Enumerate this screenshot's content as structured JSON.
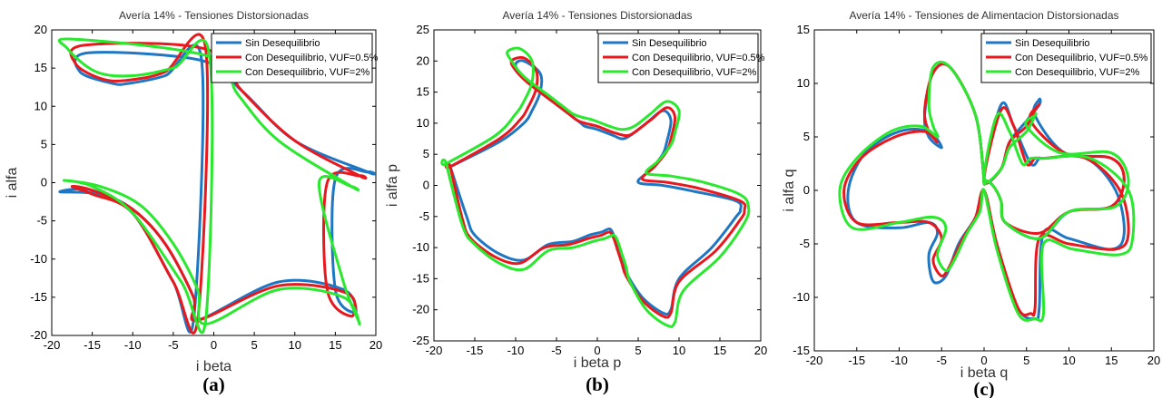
{
  "chart_data": [
    {
      "type": "line",
      "caption": "(a)",
      "title": "Avería 14% - Tensiones Distorsionadas",
      "xlabel": "i beta",
      "ylabel": "i alfa",
      "xlim": [
        -20,
        20
      ],
      "ylim": [
        -20,
        20
      ],
      "xticks": [
        -20,
        -15,
        -10,
        -5,
        0,
        5,
        10,
        15,
        20
      ],
      "yticks": [
        -20,
        -15,
        -10,
        -5,
        0,
        5,
        10,
        15,
        20
      ],
      "grid": false,
      "legend_position": "top-right",
      "series": [
        {
          "name": "Sin Desequilibrio",
          "color": "#1f77c4",
          "x": [
            19.0,
            10.0,
            3.5,
            -1.5,
            -15.5,
            -16.5,
            -12.5,
            -10.5,
            -6.0,
            -1.5,
            -2.5,
            -5.0,
            -10.0,
            -15.0,
            -19.0,
            -14.0,
            -10.0,
            -6.0,
            -2.5,
            -2.0,
            8.0,
            16.0,
            17.5,
            15.0,
            15.0,
            19.0
          ],
          "y": [
            1.4,
            5.5,
            12.0,
            16.0,
            17.0,
            14.5,
            13.0,
            13.0,
            14.0,
            16.0,
            -18.0,
            -13.0,
            -4.0,
            -1.0,
            -1.2,
            -1.5,
            -3.5,
            -8.0,
            -15.0,
            -18.0,
            -13.0,
            -14.0,
            -17.0,
            -14.0,
            0.5,
            1.4
          ]
        },
        {
          "name": "Con Desequilibrio, VUF=0.5%",
          "color": "#e8191e",
          "x": [
            18.0,
            10.0,
            3.5,
            -1.0,
            -16.0,
            -17.0,
            -13.5,
            -10.0,
            -6.0,
            -1.0,
            -2.0,
            -5.0,
            -10.0,
            -15.0,
            -17.5,
            -15.0,
            -10.0,
            -6.0,
            -2.5,
            -2.0,
            8.0,
            16.5,
            17.0,
            14.0,
            14.0,
            18.0
          ],
          "y": [
            0.9,
            5.5,
            12.0,
            17.5,
            18.0,
            15.5,
            13.5,
            13.5,
            14.5,
            17.5,
            -18.0,
            -13.0,
            -4.0,
            -1.5,
            -0.5,
            -1.0,
            -3.5,
            -8.0,
            -15.0,
            -18.0,
            -13.5,
            -14.5,
            -17.5,
            -14.0,
            0.0,
            0.9
          ]
        },
        {
          "name": "Con Desequilibrio, VUF=2%",
          "color": "#29e82d",
          "x": [
            17.0,
            8.0,
            3.0,
            -0.5,
            -17.5,
            -18.0,
            -14.5,
            -10.0,
            -5.0,
            -0.5,
            -1.0,
            -4.0,
            -10.0,
            -15.0,
            -18.5,
            -14.0,
            -9.0,
            -5.0,
            -2.0,
            -1.0,
            8.0,
            16.0,
            18.0,
            16.0,
            13.0,
            17.0
          ],
          "y": [
            -0.5,
            5.5,
            11.5,
            16.5,
            18.8,
            17.5,
            14.5,
            14.0,
            15.0,
            16.5,
            -18.0,
            -13.0,
            -4.0,
            -0.5,
            0.3,
            -0.5,
            -3.0,
            -8.0,
            -14.0,
            -18.5,
            -14.0,
            -15.0,
            -18.5,
            -13.0,
            0.0,
            -0.5
          ]
        }
      ]
    },
    {
      "type": "line",
      "caption": "(b)",
      "title": "Avería 14% - Tensiones Distorsionadas",
      "xlabel": "i beta p",
      "ylabel": "i alfa p",
      "xlim": [
        -20,
        20
      ],
      "ylim": [
        -25,
        25
      ],
      "xticks": [
        -20,
        -15,
        -10,
        -5,
        0,
        5,
        10,
        15,
        20
      ],
      "yticks": [
        -25,
        -20,
        -15,
        -10,
        -5,
        0,
        5,
        10,
        15,
        20,
        25
      ],
      "grid": false,
      "legend_position": "top-right",
      "series": [
        {
          "name": "Sin Desequilibrio",
          "color": "#1f77c4",
          "x": [
            -18.0,
            -12.0,
            -9.0,
            -8.0,
            -7.0,
            -7.0,
            -9.0,
            -10.0,
            -9.5,
            -8.0,
            -5.0,
            -3.0,
            -2.0,
            -1.5,
            0.0,
            2.0,
            3.0,
            4.0,
            6.0,
            8.0,
            9.0,
            8.5,
            8.0,
            6.5,
            5.0,
            8.0,
            12.0,
            17.0,
            17.5,
            17.0,
            14.0,
            10.0,
            9.0,
            8.0,
            5.5,
            3.5,
            3.0,
            2.5,
            2.0,
            1.5,
            0.5,
            -1.0,
            -3.0,
            -6.0,
            -9.0,
            -12.0,
            -15.0,
            -16.0,
            -18.0
          ],
          "y": [
            3.0,
            7.0,
            10.0,
            12.0,
            15.0,
            18.0,
            20.0,
            19.5,
            18.0,
            16.0,
            13.0,
            11.0,
            10.0,
            9.5,
            9.0,
            8.0,
            7.5,
            8.0,
            10.0,
            12.0,
            10.5,
            7.0,
            5.0,
            2.5,
            0.5,
            0.0,
            -1.0,
            -2.5,
            -4.0,
            -5.0,
            -10.0,
            -15.0,
            -20.0,
            -20.5,
            -18.0,
            -14.0,
            -12.0,
            -10.0,
            -8.0,
            -7.0,
            -7.5,
            -8.0,
            -9.0,
            -9.5,
            -12.0,
            -11.0,
            -8.0,
            -5.0,
            3.0
          ]
        },
        {
          "name": "Con Desequilibrio, VUF=0.5%",
          "color": "#e8191e",
          "x": [
            -18.0,
            -12.0,
            -9.5,
            -8.5,
            -7.5,
            -7.5,
            -9.0,
            -10.5,
            -10.0,
            -8.5,
            -5.5,
            -3.5,
            -2.5,
            -1.5,
            0.0,
            2.0,
            3.5,
            4.5,
            6.5,
            8.5,
            9.5,
            9.0,
            8.5,
            7.0,
            5.5,
            8.5,
            12.5,
            17.5,
            18.0,
            17.5,
            14.5,
            10.0,
            9.0,
            8.0,
            5.5,
            3.5,
            3.0,
            2.5,
            2.0,
            1.5,
            0.5,
            -1.0,
            -3.5,
            -6.5,
            -9.5,
            -12.5,
            -15.5,
            -16.5,
            -18.0
          ],
          "y": [
            3.0,
            7.5,
            10.5,
            12.5,
            15.5,
            18.5,
            20.5,
            20.0,
            18.5,
            16.5,
            13.5,
            11.5,
            10.5,
            10.0,
            9.5,
            8.5,
            8.0,
            8.5,
            10.5,
            12.5,
            11.0,
            7.5,
            5.5,
            3.0,
            1.0,
            0.5,
            -0.5,
            -2.5,
            -4.0,
            -5.5,
            -10.5,
            -15.5,
            -20.5,
            -21.0,
            -18.5,
            -14.5,
            -12.5,
            -10.5,
            -8.5,
            -7.5,
            -8.0,
            -8.5,
            -9.5,
            -10.0,
            -12.5,
            -11.5,
            -8.5,
            -5.5,
            3.0
          ]
        },
        {
          "name": "Con Desequilibrio, VUF=2%",
          "color": "#29e82d",
          "x": [
            -18.5,
            -12.5,
            -10.0,
            -9.0,
            -8.0,
            -8.0,
            -9.5,
            -11.0,
            -10.5,
            -9.0,
            -6.0,
            -4.0,
            -3.0,
            -2.0,
            -0.5,
            1.5,
            3.0,
            4.5,
            6.5,
            8.5,
            10.0,
            9.5,
            9.0,
            7.5,
            6.0,
            9.0,
            13.0,
            17.5,
            18.5,
            18.0,
            15.0,
            10.5,
            9.5,
            8.5,
            6.0,
            4.0,
            3.5,
            3.0,
            2.5,
            2.0,
            1.0,
            -0.5,
            -3.0,
            -6.0,
            -9.0,
            -12.0,
            -15.0,
            -16.5,
            -18.5
          ],
          "y": [
            3.5,
            8.0,
            11.5,
            13.5,
            16.5,
            20.0,
            22.0,
            21.5,
            20.0,
            17.5,
            14.5,
            12.5,
            11.5,
            11.0,
            10.5,
            9.5,
            9.0,
            9.5,
            11.5,
            13.5,
            12.0,
            8.5,
            6.5,
            4.0,
            2.0,
            1.5,
            0.5,
            -1.5,
            -3.5,
            -6.0,
            -11.5,
            -17.0,
            -22.0,
            -22.5,
            -20.0,
            -15.5,
            -13.0,
            -11.0,
            -9.0,
            -8.0,
            -8.5,
            -9.0,
            -10.0,
            -10.5,
            -13.5,
            -12.5,
            -9.5,
            -6.5,
            3.5
          ]
        }
      ]
    },
    {
      "type": "line",
      "caption": "(c)",
      "title": "Avería 14% - Tensiones de Alimentacion Distorsionadas",
      "xlabel": "i beta q",
      "ylabel": "i alfa q",
      "xlim": [
        -20,
        20
      ],
      "ylim": [
        -15,
        15
      ],
      "xticks": [
        -20,
        -15,
        -10,
        -5,
        0,
        5,
        10,
        15,
        20
      ],
      "yticks": [
        -15,
        -10,
        -5,
        0,
        5,
        10,
        15
      ],
      "grid": false,
      "legend_position": "top-right",
      "series": [
        {
          "name": "Sin Desequilibrio",
          "color": "#1f77c4",
          "x": [
            0.0,
            -1.0,
            -4.0,
            -6.0,
            -7.0,
            -6.5,
            -5.0,
            -6.5,
            -10.0,
            -14.0,
            -16.0,
            -15.0,
            -10.0,
            -6.5,
            -5.5,
            -6.5,
            -6.0,
            -4.5,
            -3.0,
            -1.0,
            0.0,
            1.5,
            4.0,
            6.0,
            6.5,
            7.0,
            10.0,
            15.0,
            16.5,
            15.5,
            12.0,
            7.0,
            6.5,
            5.5,
            3.5,
            2.0,
            0.0,
            2.0,
            3.0,
            5.0,
            6.5,
            6.5,
            6.0,
            9.5,
            15.0,
            16.5,
            15.0,
            10.0,
            6.5,
            2.5,
            2.0,
            1.0,
            0.0
          ],
          "y": [
            1.0,
            7.0,
            11.5,
            11.0,
            7.0,
            5.0,
            4.0,
            5.5,
            5.5,
            3.5,
            0.0,
            -3.0,
            -3.5,
            -3.0,
            -4.0,
            -6.0,
            -8.5,
            -8.0,
            -5.0,
            -2.5,
            0.0,
            -5.0,
            -11.0,
            -12.0,
            -11.0,
            -4.0,
            -4.5,
            -5.5,
            -4.0,
            0.0,
            3.0,
            3.0,
            3.0,
            2.5,
            6.0,
            8.0,
            1.0,
            2.0,
            4.5,
            6.5,
            8.0,
            8.5,
            7.0,
            3.5,
            3.0,
            1.0,
            -1.5,
            -2.0,
            -4.5,
            -3.0,
            -1.0,
            0.5,
            1.0
          ]
        },
        {
          "name": "Con Desequilibrio, VUF=0.5%",
          "color": "#e8191e",
          "x": [
            0.0,
            -1.0,
            -4.0,
            -6.0,
            -7.0,
            -6.5,
            -5.5,
            -7.0,
            -10.5,
            -14.5,
            -16.5,
            -15.0,
            -10.0,
            -6.5,
            -5.0,
            -6.0,
            -5.0,
            -4.0,
            -2.5,
            -1.0,
            0.0,
            1.5,
            4.0,
            5.5,
            6.0,
            6.5,
            10.0,
            15.5,
            17.0,
            16.0,
            12.0,
            7.0,
            6.0,
            5.0,
            3.5,
            2.0,
            0.0,
            2.0,
            3.0,
            5.0,
            6.0,
            6.5,
            5.5,
            9.5,
            15.0,
            16.5,
            15.0,
            10.0,
            6.5,
            2.5,
            2.0,
            1.0,
            0.0
          ],
          "y": [
            1.0,
            7.0,
            11.5,
            11.0,
            7.5,
            5.5,
            4.5,
            5.5,
            5.0,
            3.0,
            0.0,
            -3.0,
            -3.0,
            -3.0,
            -4.5,
            -6.5,
            -8.0,
            -7.0,
            -4.5,
            -2.5,
            0.0,
            -5.0,
            -11.0,
            -11.5,
            -11.0,
            -4.5,
            -5.0,
            -5.5,
            -4.0,
            0.0,
            3.0,
            3.0,
            3.0,
            2.5,
            6.0,
            7.5,
            1.0,
            2.0,
            4.5,
            6.0,
            7.5,
            8.0,
            6.5,
            3.5,
            3.0,
            1.0,
            -1.5,
            -2.0,
            -4.0,
            -3.0,
            -1.0,
            0.5,
            1.0
          ]
        },
        {
          "name": "Con Desequilibrio, VUF=2%",
          "color": "#29e82d",
          "x": [
            0.0,
            -1.0,
            -4.0,
            -6.0,
            -6.5,
            -6.0,
            -5.5,
            -7.5,
            -11.0,
            -15.0,
            -17.0,
            -15.5,
            -10.0,
            -6.0,
            -4.5,
            -5.5,
            -4.5,
            -3.5,
            -2.0,
            -0.5,
            0.0,
            1.5,
            4.0,
            6.0,
            7.0,
            7.0,
            10.5,
            16.0,
            17.5,
            17.0,
            12.5,
            7.0,
            5.5,
            4.5,
            3.0,
            1.5,
            0.0,
            2.0,
            3.0,
            5.0,
            6.0,
            6.0,
            5.0,
            9.0,
            15.0,
            17.0,
            15.5,
            10.0,
            6.5,
            2.5,
            2.0,
            1.0,
            0.0
          ],
          "y": [
            1.0,
            7.0,
            11.5,
            11.5,
            8.0,
            6.0,
            5.0,
            6.0,
            5.5,
            3.0,
            0.0,
            -3.5,
            -3.0,
            -2.5,
            -3.5,
            -6.0,
            -7.5,
            -6.5,
            -4.0,
            -2.0,
            0.0,
            -5.5,
            -11.5,
            -12.0,
            -11.5,
            -5.0,
            -5.5,
            -6.0,
            -4.5,
            0.0,
            3.0,
            3.0,
            3.0,
            2.5,
            5.5,
            7.0,
            1.0,
            2.0,
            4.0,
            5.5,
            7.0,
            7.0,
            6.0,
            3.5,
            3.5,
            1.0,
            -1.5,
            -2.0,
            -4.5,
            -3.0,
            -1.0,
            0.5,
            1.0
          ]
        }
      ]
    }
  ]
}
